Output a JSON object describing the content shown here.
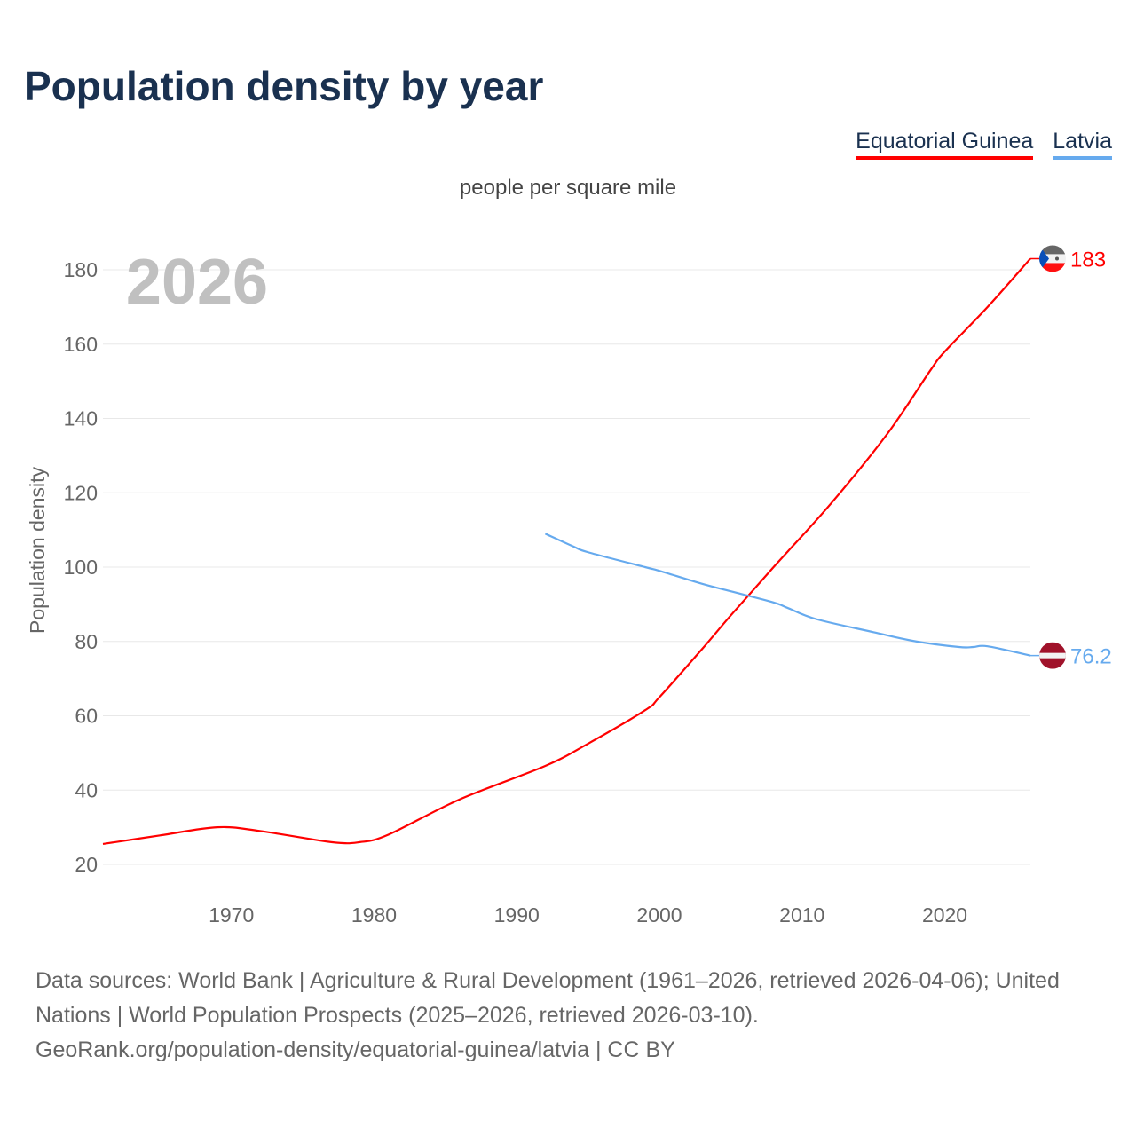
{
  "header": {
    "title": "Population density by year",
    "subtitle": "people per square mile"
  },
  "legend": [
    {
      "label": "Equatorial Guinea",
      "color": "#ff0000"
    },
    {
      "label": "Latvia",
      "color": "#66aaee"
    }
  ],
  "year_label": "2026",
  "footer": {
    "source": "Data sources: World Bank | Agriculture & Rural Development (1961–2026, retrieved 2026-04-06); United Nations | World Population Prospects (2025–2026, retrieved 2026-03-10).",
    "link": "GeoRank.org/population-density/equatorial-guinea/latvia | CC BY"
  },
  "chart_data": {
    "type": "line",
    "title": "Population density by year",
    "ylabel": "Population density",
    "xlabel": "",
    "xlim": [
      1961,
      2026
    ],
    "ylim": [
      20,
      185
    ],
    "grid": true,
    "x_ticks": [
      1970,
      1980,
      1990,
      2000,
      2010,
      2020
    ],
    "y_ticks": [
      20,
      40,
      60,
      80,
      100,
      120,
      140,
      160,
      180
    ],
    "series": [
      {
        "name": "Equatorial Guinea",
        "color": "#ff0000",
        "end_label": "183",
        "x": [
          1961,
          1965,
          1969,
          1972,
          1977,
          1979,
          1981,
          1986,
          1992,
          1995,
          1999,
          2000,
          2003,
          2005,
          2008,
          2012,
          2016,
          2019,
          2020,
          2023,
          2026
        ],
        "y": [
          25.5,
          27.8,
          30,
          29,
          26,
          26,
          28,
          37.5,
          46.5,
          52.5,
          61.5,
          65,
          78,
          87,
          100,
          117,
          136,
          153,
          158,
          170,
          183
        ]
      },
      {
        "name": "Latvia",
        "color": "#66aaee",
        "end_label": "76.2",
        "x": [
          1992,
          1994,
          1995,
          1999,
          2000,
          2003,
          2005,
          2008,
          2009,
          2011,
          2015,
          2018,
          2021,
          2022,
          2023,
          2026
        ],
        "y": [
          109,
          105.5,
          104,
          100,
          99,
          95.5,
          93.5,
          90.5,
          89,
          86,
          82.5,
          80,
          78.5,
          78.5,
          78.7,
          76.2
        ]
      }
    ]
  }
}
